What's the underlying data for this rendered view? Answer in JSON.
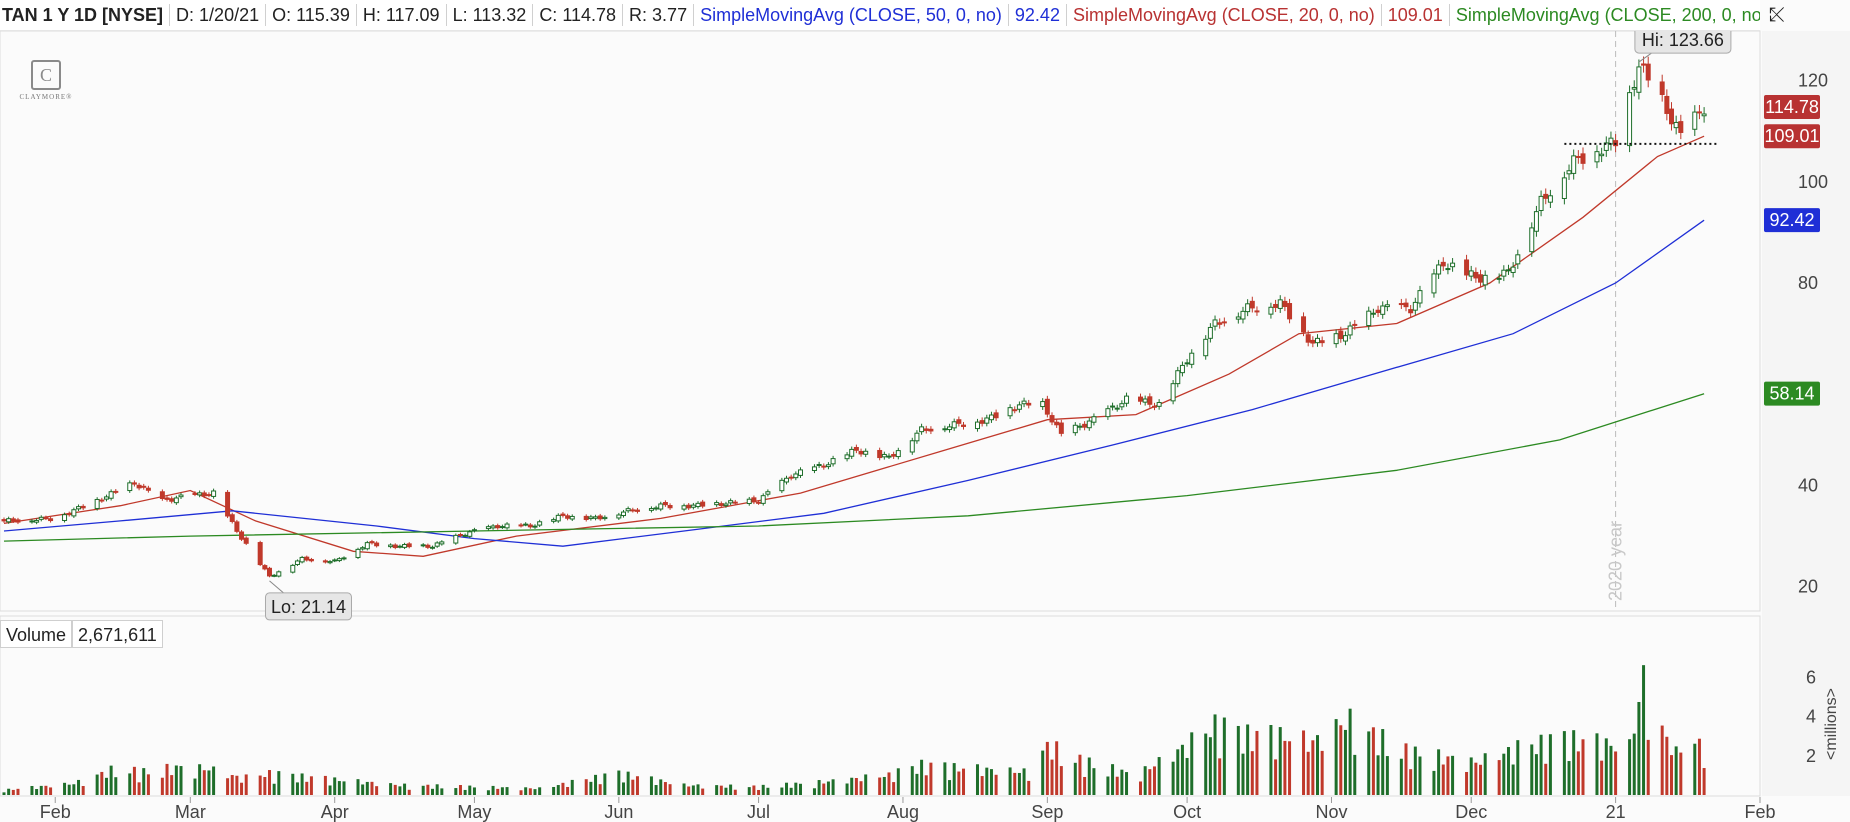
{
  "header": {
    "symbol": "TAN 1 Y 1D [NYSE]",
    "date": "D: 1/20/21",
    "open": "O: 115.39",
    "high": "H: 117.09",
    "low": "L: 113.32",
    "close": "C: 114.78",
    "range": "R: 3.77",
    "sma50_label": "SimpleMovingAvg (CLOSE, 50, 0, no)",
    "sma50_value": "92.42",
    "sma20_label": "SimpleMovingAvg (CLOSE, 20, 0, no)",
    "sma20_value": "109.01",
    "sma200_label": "SimpleMovingAvg (CLOSE, 200, 0, no)",
    "more": "..."
  },
  "logo_text": "CLAYMORE®",
  "volume_panel": {
    "label": "Volume",
    "value": "2,671,611",
    "unit_label": "<millions>"
  },
  "chart_data": [
    {
      "type": "candlestick",
      "title": "TAN 1 Y 1D [NYSE]",
      "ylim": [
        15,
        130
      ],
      "y_ticks": [
        20,
        40,
        80,
        100,
        120
      ],
      "x_ticks": [
        "Feb",
        "Mar",
        "Apr",
        "May",
        "Jun",
        "Jul",
        "Aug",
        "Sep",
        "Oct",
        "Nov",
        "Dec",
        "21",
        "Feb"
      ],
      "x_range": [
        "2020-01-21",
        "2021-02-01"
      ],
      "grid": false,
      "year_marker": {
        "date": "2021-01-01",
        "label": "2020 year"
      },
      "annotations": [
        {
          "text": "Hi: 123.66",
          "date": "2021-01-06",
          "value": 123.66
        },
        {
          "text": "Lo: 21.14",
          "date": "2020-03-18",
          "value": 21.14
        }
      ],
      "price_labels": [
        {
          "text": "114.78",
          "value": 114.78,
          "color": "#b83232"
        },
        {
          "text": "109.01",
          "value": 109.01,
          "color": "#b83232"
        },
        {
          "text": "92.42",
          "value": 92.42,
          "color": "#1f2fd6"
        },
        {
          "text": "58.14",
          "value": 58.14,
          "color": "#2c8a22"
        }
      ],
      "resistance_line": {
        "value": 107.5,
        "from": "2020-12-21",
        "to": "2021-01-21"
      },
      "close_series": [
        [
          "2020-01-21",
          33
        ],
        [
          "2020-02-01",
          33.5
        ],
        [
          "2020-02-10",
          37
        ],
        [
          "2020-02-18",
          40.5
        ],
        [
          "2020-02-24",
          37
        ],
        [
          "2020-03-01",
          38
        ],
        [
          "2020-03-06",
          38.5
        ],
        [
          "2020-03-11",
          31
        ],
        [
          "2020-03-18",
          22
        ],
        [
          "2020-03-25",
          25.5
        ],
        [
          "2020-04-01",
          25
        ],
        [
          "2020-04-08",
          28.5
        ],
        [
          "2020-04-15",
          28
        ],
        [
          "2020-04-22",
          28
        ],
        [
          "2020-04-29",
          30.5
        ],
        [
          "2020-05-06",
          32
        ],
        [
          "2020-05-13",
          32
        ],
        [
          "2020-05-20",
          34
        ],
        [
          "2020-05-27",
          33.5
        ],
        [
          "2020-06-03",
          35
        ],
        [
          "2020-06-10",
          36
        ],
        [
          "2020-06-17",
          36
        ],
        [
          "2020-06-24",
          36.5
        ],
        [
          "2020-07-01",
          37
        ],
        [
          "2020-07-08",
          42
        ],
        [
          "2020-07-15",
          44
        ],
        [
          "2020-07-22",
          47
        ],
        [
          "2020-07-29",
          45.5
        ],
        [
          "2020-08-05",
          51
        ],
        [
          "2020-08-12",
          52
        ],
        [
          "2020-08-19",
          53
        ],
        [
          "2020-08-26",
          56
        ],
        [
          "2020-08-31",
          56
        ],
        [
          "2020-09-04",
          50
        ],
        [
          "2020-09-11",
          53
        ],
        [
          "2020-09-18",
          57
        ],
        [
          "2020-09-25",
          56
        ],
        [
          "2020-10-01",
          65
        ],
        [
          "2020-10-07",
          72
        ],
        [
          "2020-10-14",
          75
        ],
        [
          "2020-10-21",
          76
        ],
        [
          "2020-10-28",
          68
        ],
        [
          "2020-11-04",
          70
        ],
        [
          "2020-11-11",
          75
        ],
        [
          "2020-11-18",
          75
        ],
        [
          "2020-11-25",
          84
        ],
        [
          "2020-12-02",
          81
        ],
        [
          "2020-12-09",
          82
        ],
        [
          "2020-12-16",
          96
        ],
        [
          "2020-12-23",
          104
        ],
        [
          "2021-01-01",
          108
        ],
        [
          "2021-01-06",
          123
        ],
        [
          "2021-01-11",
          116
        ],
        [
          "2021-01-15",
          109
        ],
        [
          "2021-01-20",
          114.78
        ]
      ],
      "series": [
        {
          "name": "SimpleMovingAvg (CLOSE, 20, 0, no)",
          "color": "#c0392b",
          "last": 109.01,
          "points": [
            [
              "2020-01-21",
              32.5
            ],
            [
              "2020-02-15",
              36
            ],
            [
              "2020-03-01",
              39
            ],
            [
              "2020-03-15",
              33
            ],
            [
              "2020-04-05",
              27
            ],
            [
              "2020-04-20",
              26
            ],
            [
              "2020-05-10",
              30
            ],
            [
              "2020-06-10",
              33.5
            ],
            [
              "2020-07-10",
              38.5
            ],
            [
              "2020-08-10",
              47
            ],
            [
              "2020-09-01",
              53
            ],
            [
              "2020-09-20",
              54
            ],
            [
              "2020-10-10",
              62
            ],
            [
              "2020-10-25",
              70
            ],
            [
              "2020-11-15",
              72
            ],
            [
              "2020-12-05",
              80
            ],
            [
              "2020-12-25",
              93
            ],
            [
              "2021-01-10",
              105
            ],
            [
              "2021-01-20",
              109.01
            ]
          ]
        },
        {
          "name": "SimpleMovingAvg (CLOSE, 50, 0, no)",
          "color": "#1f2fd6",
          "last": 92.42,
          "points": [
            [
              "2020-01-21",
              31
            ],
            [
              "2020-02-15",
              33
            ],
            [
              "2020-03-10",
              35
            ],
            [
              "2020-04-10",
              32
            ],
            [
              "2020-05-01",
              29.5
            ],
            [
              "2020-05-20",
              28
            ],
            [
              "2020-06-15",
              31
            ],
            [
              "2020-07-15",
              34.5
            ],
            [
              "2020-08-15",
              41
            ],
            [
              "2020-09-15",
              48
            ],
            [
              "2020-10-15",
              55
            ],
            [
              "2020-11-10",
              62
            ],
            [
              "2020-12-10",
              70
            ],
            [
              "2021-01-01",
              80
            ],
            [
              "2021-01-20",
              92.42
            ]
          ]
        },
        {
          "name": "SimpleMovingAvg (CLOSE, 200, 0, no)",
          "color": "#2c8a22",
          "last": 58.14,
          "points": [
            [
              "2020-01-21",
              29
            ],
            [
              "2020-03-01",
              30
            ],
            [
              "2020-05-01",
              31
            ],
            [
              "2020-07-01",
              32
            ],
            [
              "2020-08-15",
              34
            ],
            [
              "2020-10-01",
              38
            ],
            [
              "2020-11-15",
              43
            ],
            [
              "2020-12-20",
              49
            ],
            [
              "2021-01-20",
              58.14
            ]
          ]
        }
      ]
    },
    {
      "type": "bar",
      "title": "Volume",
      "ylabel": "<millions>",
      "ylim": [
        0,
        7.5
      ],
      "y_ticks": [
        2,
        4,
        6
      ],
      "values_millions": [
        [
          "2020-01-21",
          0.3
        ],
        [
          "2020-02-05",
          0.7
        ],
        [
          "2020-02-14",
          1.6
        ],
        [
          "2020-02-20",
          1.4
        ],
        [
          "2020-02-28",
          1.7
        ],
        [
          "2020-03-05",
          1.6
        ],
        [
          "2020-03-12",
          1.0
        ],
        [
          "2020-03-18",
          1.3
        ],
        [
          "2020-03-25",
          1.1
        ],
        [
          "2020-04-15",
          0.6
        ],
        [
          "2020-05-15",
          0.4
        ],
        [
          "2020-06-01",
          1.3
        ],
        [
          "2020-06-15",
          0.6
        ],
        [
          "2020-07-01",
          0.5
        ],
        [
          "2020-07-15",
          0.8
        ],
        [
          "2020-07-29",
          1.2
        ],
        [
          "2020-08-05",
          1.8
        ],
        [
          "2020-08-15",
          1.6
        ],
        [
          "2020-08-28",
          1.4
        ],
        [
          "2020-09-01",
          3.0
        ],
        [
          "2020-09-08",
          2.1
        ],
        [
          "2020-09-20",
          1.2
        ],
        [
          "2020-10-01",
          3.0
        ],
        [
          "2020-10-07",
          4.2
        ],
        [
          "2020-10-14",
          3.6
        ],
        [
          "2020-10-21",
          3.6
        ],
        [
          "2020-10-28",
          3.2
        ],
        [
          "2020-11-04",
          4.5
        ],
        [
          "2020-11-06",
          4.5
        ],
        [
          "2020-11-10",
          3.7
        ],
        [
          "2020-11-16",
          2.7
        ],
        [
          "2020-11-25",
          2.3
        ],
        [
          "2020-12-02",
          2.0
        ],
        [
          "2020-12-11",
          2.8
        ],
        [
          "2020-12-21",
          3.4
        ],
        [
          "2021-01-04",
          2.9
        ],
        [
          "2021-01-07",
          7.1
        ],
        [
          "2021-01-08",
          4.9
        ],
        [
          "2021-01-11",
          3.9
        ],
        [
          "2021-01-14",
          2.5
        ],
        [
          "2021-01-15",
          4.3
        ],
        [
          "2021-01-20",
          2.67
        ]
      ]
    }
  ]
}
